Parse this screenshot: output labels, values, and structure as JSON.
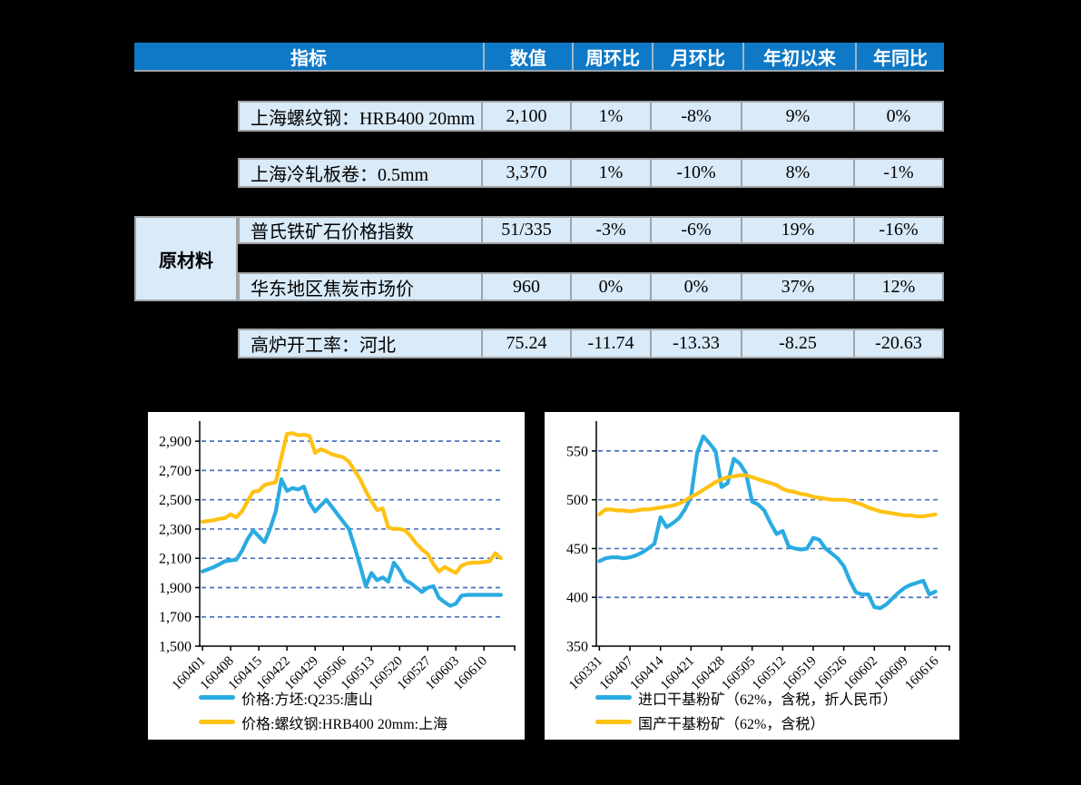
{
  "colors": {
    "page_background": "#000000",
    "table_header_blue": "#0E79C6",
    "table_cell_blue": "#D9EAF8",
    "table_border_gray": "#A0A4A8",
    "grid_blue": "#4A72BE",
    "line_blue": "#29ABE2",
    "line_yellow": "#FFC113"
  },
  "table": {
    "headers": [
      "指标",
      "数值",
      "周环比",
      "月环比",
      "年初以来",
      "年同比"
    ],
    "group_label": "原材料",
    "rows": [
      {
        "indicator": "上海螺纹钢：HRB400 20mm",
        "value": "2,100",
        "wow": "1%",
        "mom": "-8%",
        "ytd": "9%",
        "yoy": "0%"
      },
      {
        "indicator": "上海冷轧板卷：0.5mm",
        "value": "3,370",
        "wow": "1%",
        "mom": "-10%",
        "ytd": "8%",
        "yoy": "-1%"
      },
      {
        "indicator": "普氏铁矿石价格指数",
        "value": "51/335",
        "wow": "-3%",
        "mom": "-6%",
        "ytd": "19%",
        "yoy": "-16%"
      },
      {
        "indicator": "华东地区焦炭市场价",
        "value": "960",
        "wow": "0%",
        "mom": "0%",
        "ytd": "37%",
        "yoy": "12%"
      },
      {
        "indicator": "高炉开工率：河北",
        "value": "75.24",
        "wow": "-11.74",
        "mom": "-13.33",
        "ytd": "-8.25",
        "yoy": "-20.63"
      }
    ]
  },
  "chart_data": [
    {
      "type": "line",
      "title": "",
      "grid": "dashed-horizontal",
      "legend_position": "bottom-left",
      "x_tick_labels": [
        "160401",
        "160408",
        "160415",
        "160422",
        "160429",
        "160506",
        "160513",
        "160520",
        "160527",
        "160603",
        "160610"
      ],
      "label_every": 5,
      "ylim": [
        1500,
        3000
      ],
      "yticks": [
        {
          "label": "1,500",
          "value": 1500
        },
        {
          "label": "1,700",
          "value": 1700
        },
        {
          "label": "1,900",
          "value": 1900
        },
        {
          "label": "2,100",
          "value": 2100
        },
        {
          "label": "2,300",
          "value": 2300
        },
        {
          "label": "2,500",
          "value": 2500
        },
        {
          "label": "2,700",
          "value": 2700
        },
        {
          "label": "2,900",
          "value": 2900
        }
      ],
      "series": [
        {
          "name": "价格:方坯:Q235:唐山",
          "color": "#29ABE2",
          "values": [
            2010,
            2025,
            2040,
            2060,
            2080,
            2085,
            2090,
            2150,
            2230,
            2290,
            2250,
            2210,
            2300,
            2420,
            2640,
            2560,
            2580,
            2570,
            2590,
            2480,
            2420,
            2460,
            2500,
            2450,
            2400,
            2350,
            2300,
            2180,
            2050,
            1910,
            2000,
            1950,
            1970,
            1940,
            2070,
            2020,
            1950,
            1930,
            1900,
            1870,
            1900,
            1910,
            1830,
            1800,
            1775,
            1790,
            1845,
            1850,
            1850,
            1850,
            1850,
            1850,
            1850,
            1850
          ]
        },
        {
          "name": "价格:螺纹钢:HRB400 20mm:上海",
          "color": "#FFC113",
          "values": [
            2350,
            2355,
            2360,
            2370,
            2375,
            2400,
            2380,
            2420,
            2490,
            2555,
            2560,
            2600,
            2610,
            2620,
            2790,
            2950,
            2955,
            2940,
            2945,
            2935,
            2820,
            2845,
            2830,
            2810,
            2800,
            2790,
            2760,
            2700,
            2640,
            2560,
            2490,
            2430,
            2440,
            2310,
            2300,
            2300,
            2290,
            2250,
            2200,
            2160,
            2130,
            2060,
            2010,
            2040,
            2020,
            2000,
            2050,
            2065,
            2070,
            2070,
            2075,
            2080,
            2135,
            2100
          ]
        }
      ]
    },
    {
      "type": "line",
      "title": "",
      "grid": "dashed-horizontal",
      "legend_position": "bottom-left",
      "x_tick_labels": [
        "160331",
        "160407",
        "160414",
        "160421",
        "160428",
        "160505",
        "160512",
        "160519",
        "160526",
        "160602",
        "160609",
        "160616"
      ],
      "label_every": 5,
      "ylim": [
        350,
        575
      ],
      "yticks": [
        {
          "label": "350",
          "value": 350
        },
        {
          "label": "400",
          "value": 400
        },
        {
          "label": "450",
          "value": 450
        },
        {
          "label": "500",
          "value": 500
        },
        {
          "label": "550",
          "value": 550
        }
      ],
      "series": [
        {
          "name": "进口干基粉矿（62%，含税，折人民币）",
          "color": "#29ABE2",
          "values": [
            437,
            440,
            441,
            441,
            440,
            441,
            443,
            446,
            450,
            455,
            482,
            472,
            476,
            481,
            490,
            503,
            548,
            565,
            558,
            550,
            513,
            517,
            542,
            537,
            527,
            498,
            495,
            489,
            476,
            465,
            468,
            452,
            450,
            449,
            450,
            461,
            459,
            450,
            445,
            440,
            432,
            417,
            405,
            403,
            403,
            390,
            389,
            393,
            399,
            405,
            410,
            413,
            415,
            417,
            403,
            406
          ]
        },
        {
          "name": "国产干基粉矿（62%，含税）",
          "color": "#FFC113",
          "values": [
            485,
            490,
            490,
            489,
            489,
            488,
            489,
            490,
            490,
            491,
            492,
            493,
            494,
            496,
            499,
            503,
            506,
            510,
            514,
            518,
            521,
            523,
            524,
            525,
            525,
            523,
            521,
            519,
            517,
            515,
            511,
            509,
            508,
            506,
            505,
            503,
            502,
            501,
            500,
            500,
            500,
            499,
            497,
            495,
            492,
            490,
            488,
            487,
            486,
            485,
            484,
            484,
            483,
            483,
            484,
            485
          ]
        }
      ]
    }
  ]
}
